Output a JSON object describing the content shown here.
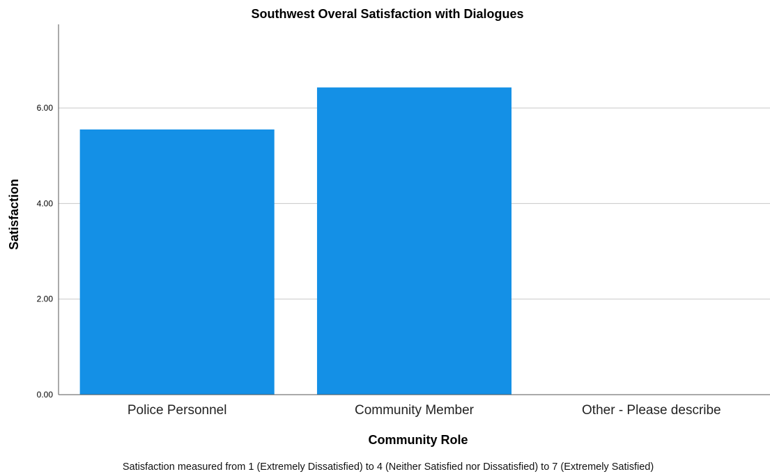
{
  "chart_data": {
    "type": "bar",
    "title": "Southwest Overal Satisfaction with Dialogues",
    "xlabel": "Community Role",
    "ylabel": "Satisfaction",
    "categories": [
      "Police Personnel",
      "Community Member",
      "Other - Please describe"
    ],
    "values": [
      5.55,
      6.43,
      null
    ],
    "ylim": [
      0,
      7.75
    ],
    "yticks": [
      "0.00",
      "2.00",
      "4.00",
      "6.00"
    ],
    "grid": true,
    "bar_color": "#1490E6",
    "footnote": "Satisfaction measured from 1 (Extremely Dissatisfied) to 4 (Neither Satisfied nor Dissatisfied) to 7 (Extremely Satisfied)"
  }
}
